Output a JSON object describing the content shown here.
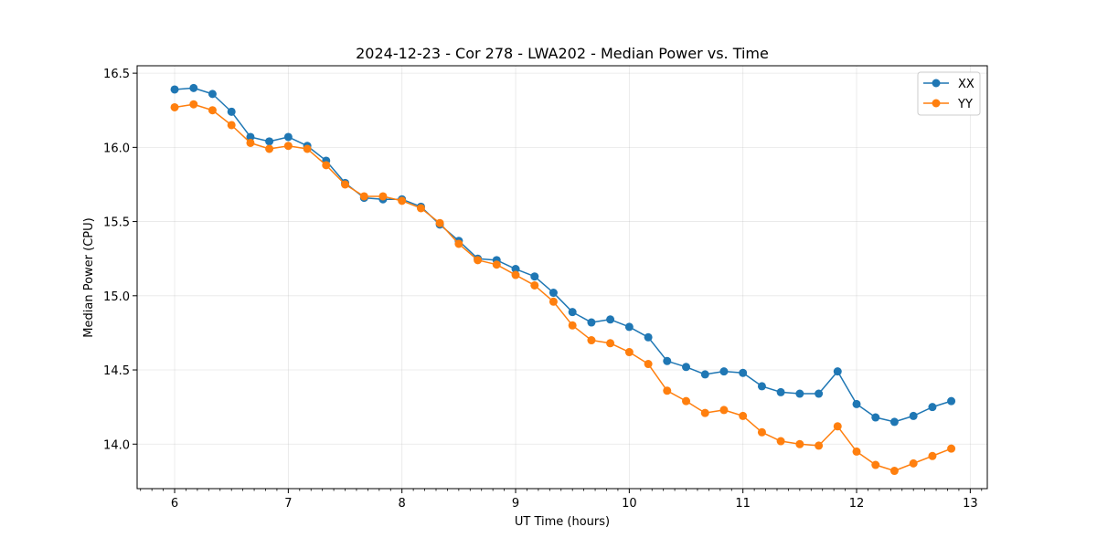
{
  "chart_data": {
    "type": "line",
    "title": "2024-12-23 - Cor 278 - LWA202 - Median Power vs. Time",
    "xlabel": "UT Time (hours)",
    "ylabel": "Median Power (CPU)",
    "xlim": [
      5.67,
      13.15
    ],
    "ylim": [
      13.7,
      16.55
    ],
    "xticks": [
      6,
      7,
      8,
      9,
      10,
      11,
      12,
      13
    ],
    "xticks_minor": [
      5.7,
      5.8,
      5.9,
      6.1,
      6.2,
      6.3,
      6.4,
      6.5,
      6.6,
      6.7,
      6.8,
      6.9,
      7.1,
      7.2,
      7.3,
      7.4,
      7.5,
      7.6,
      7.7,
      7.8,
      7.9,
      8.1,
      8.2,
      8.3,
      8.4,
      8.5,
      8.6,
      8.7,
      8.8,
      8.9,
      9.1,
      9.2,
      9.3,
      9.4,
      9.5,
      9.6,
      9.7,
      9.8,
      9.9,
      10.1,
      10.2,
      10.3,
      10.4,
      10.5,
      10.6,
      10.7,
      10.8,
      10.9,
      11.1,
      11.2,
      11.3,
      11.4,
      11.5,
      11.6,
      11.7,
      11.8,
      11.9,
      12.1,
      12.2,
      12.3,
      12.4,
      12.5,
      12.6,
      12.7,
      12.8,
      12.9,
      13.1
    ],
    "yticks": [
      14.0,
      14.5,
      15.0,
      15.5,
      16.0,
      16.5
    ],
    "ytick_labels": [
      "14.0",
      "14.5",
      "15.0",
      "15.5",
      "16.0",
      "16.5"
    ],
    "grid": true,
    "legend_position": "top-right",
    "x": [
      6.0,
      6.167,
      6.333,
      6.5,
      6.667,
      6.833,
      7.0,
      7.167,
      7.333,
      7.5,
      7.667,
      7.833,
      8.0,
      8.167,
      8.333,
      8.5,
      8.667,
      8.833,
      9.0,
      9.167,
      9.333,
      9.5,
      9.667,
      9.833,
      10.0,
      10.167,
      10.333,
      10.5,
      10.667,
      10.833,
      11.0,
      11.167,
      11.333,
      11.5,
      11.667,
      11.833,
      12.0,
      12.167,
      12.333,
      12.5,
      12.667,
      12.833
    ],
    "series": [
      {
        "name": "XX",
        "color": "#1f77b4",
        "values": [
          16.39,
          16.4,
          16.36,
          16.24,
          16.07,
          16.04,
          16.07,
          16.01,
          15.91,
          15.76,
          15.66,
          15.65,
          15.65,
          15.6,
          15.48,
          15.37,
          15.25,
          15.24,
          15.18,
          15.13,
          15.02,
          14.89,
          14.82,
          14.84,
          14.79,
          14.72,
          14.56,
          14.52,
          14.47,
          14.49,
          14.48,
          14.39,
          14.35,
          14.34,
          14.34,
          14.49,
          14.27,
          14.18,
          14.15,
          14.19,
          14.25,
          14.29
        ]
      },
      {
        "name": "YY",
        "color": "#ff7f0e",
        "values": [
          16.27,
          16.29,
          16.25,
          16.15,
          16.03,
          15.99,
          16.01,
          15.99,
          15.88,
          15.75,
          15.67,
          15.67,
          15.64,
          15.59,
          15.49,
          15.35,
          15.24,
          15.21,
          15.14,
          15.07,
          14.96,
          14.8,
          14.7,
          14.68,
          14.62,
          14.54,
          14.36,
          14.29,
          14.21,
          14.23,
          14.19,
          14.08,
          14.02,
          14.0,
          13.99,
          14.12,
          13.95,
          13.86,
          13.82,
          13.87,
          13.92,
          13.97
        ]
      }
    ]
  }
}
